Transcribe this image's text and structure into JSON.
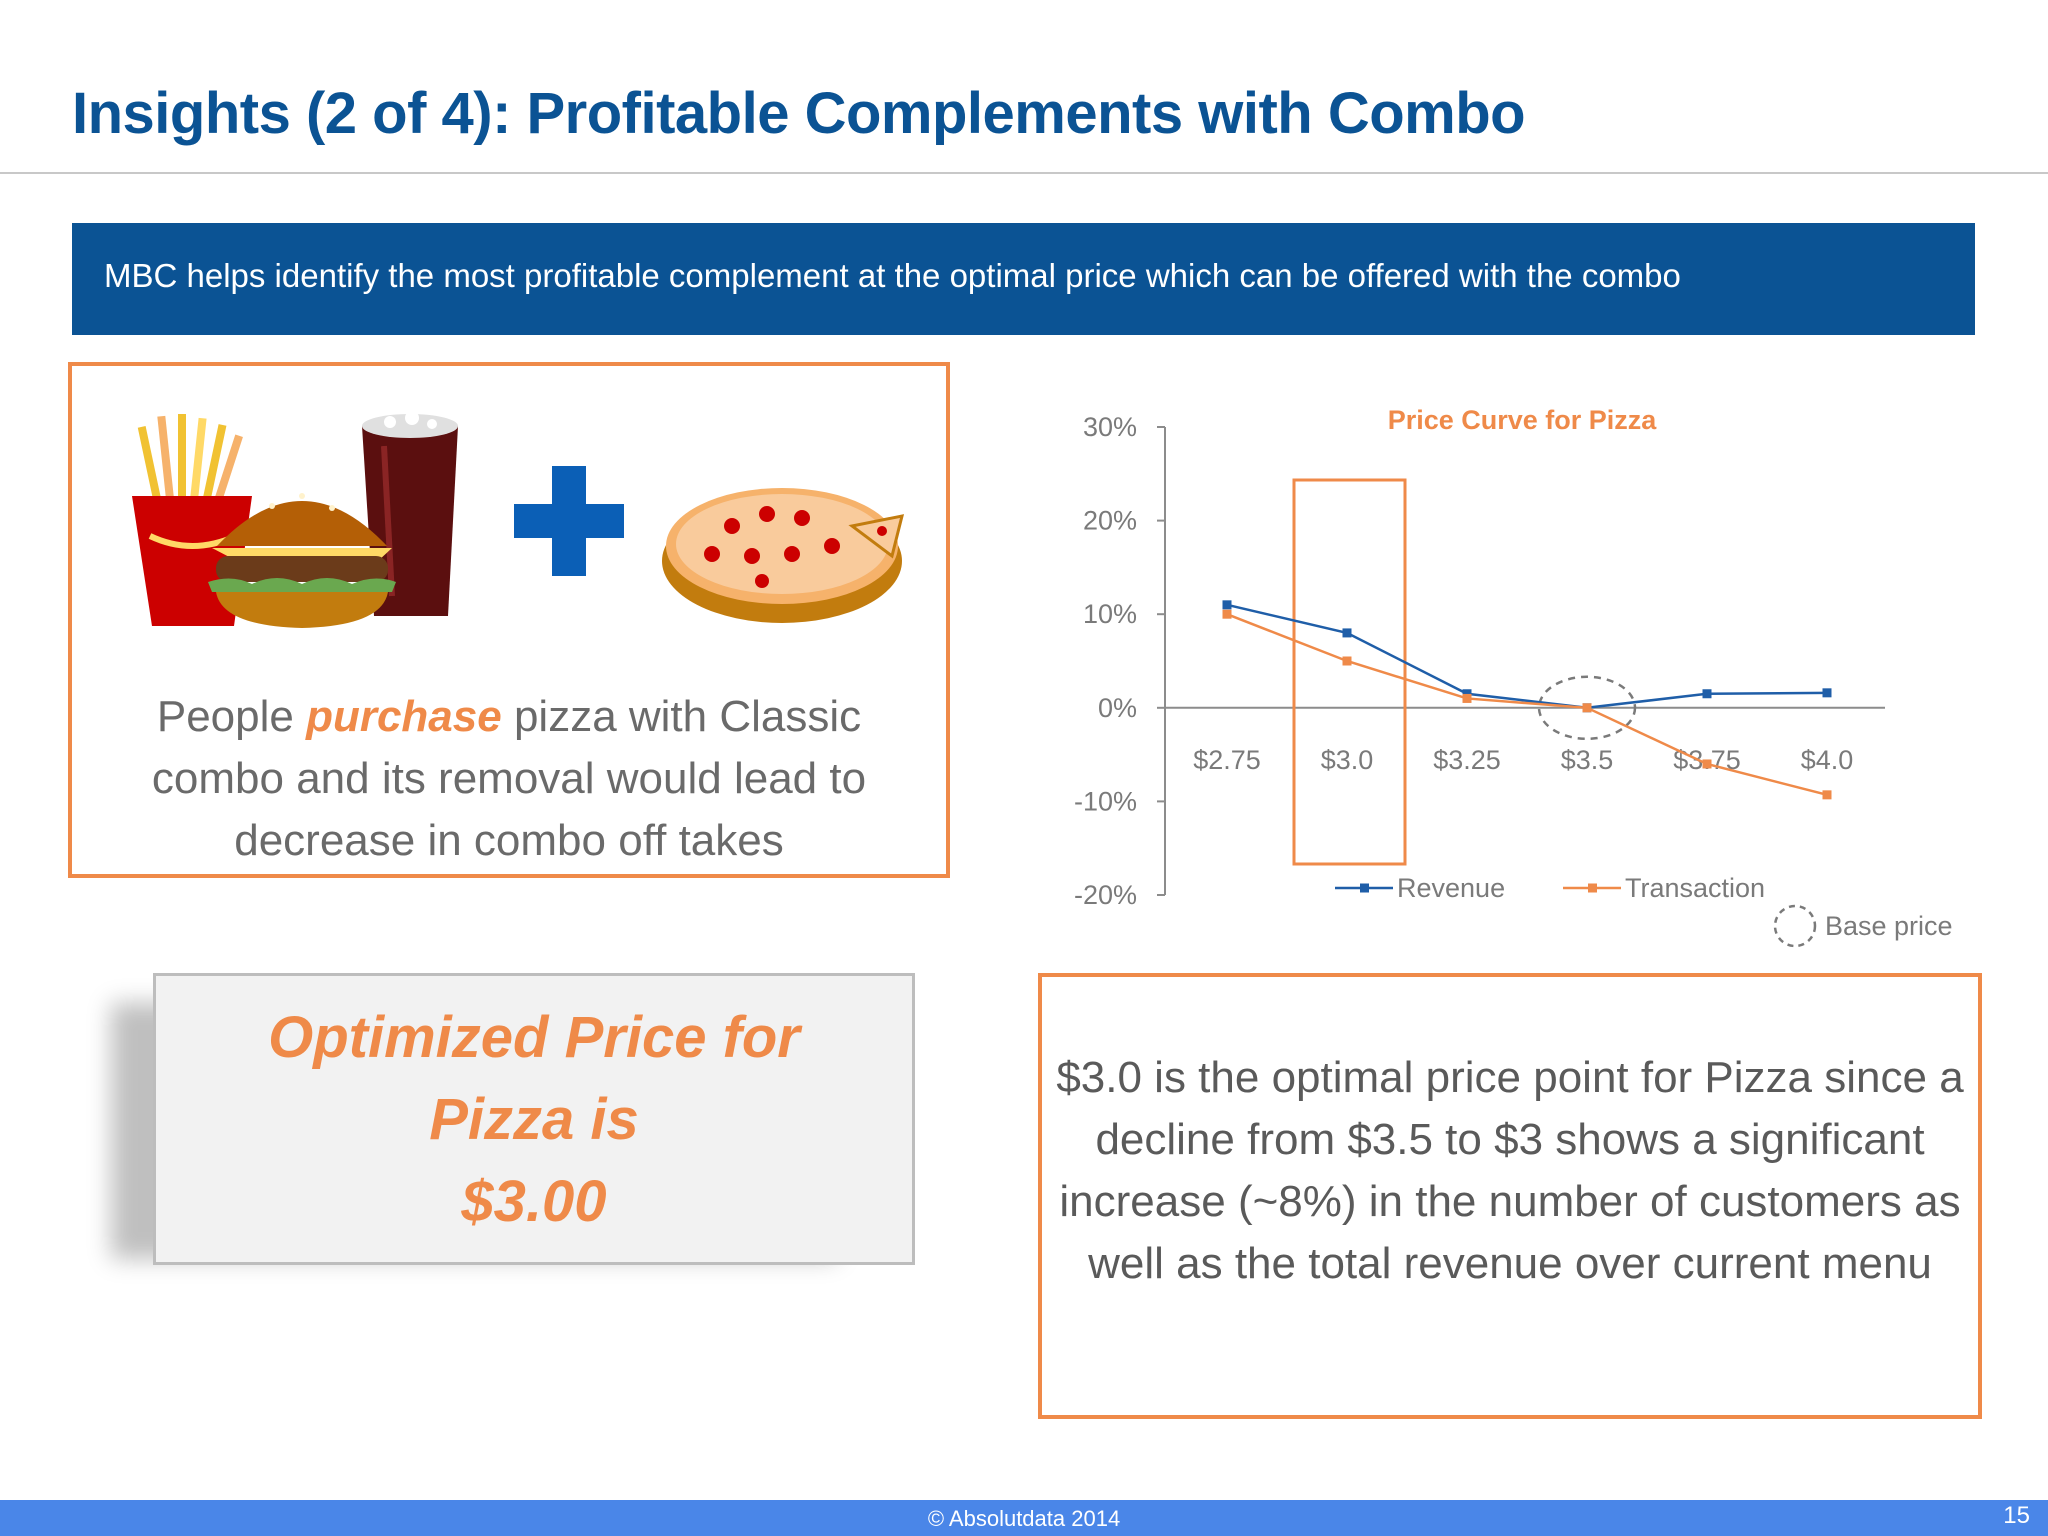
{
  "slide": {
    "title": "Insights (2 of 4): Profitable Complements with Combo",
    "banner": "MBC helps identify the most profitable complement at the optimal price which can be offered with the combo"
  },
  "left_panel": {
    "text_before": "People ",
    "text_emphasis": "purchase",
    "text_after": " pizza with Classic combo and its removal would lead to decrease in combo off takes"
  },
  "optimized_box": {
    "line1": "Optimized Price for",
    "line2": "Pizza is",
    "line3": "$3.00"
  },
  "right_panel": {
    "text": "$3.0 is the optimal price point for Pizza since a decline from $3.5 to $3 shows a significant increase (~8%) in the number of customers as well as the total revenue over current menu"
  },
  "footer": {
    "copyright": "© Absolutdata 2014",
    "page": "15"
  },
  "colors": {
    "brand_blue": "#0b5394",
    "accent_orange": "#ef8a49",
    "revenue": "#1f5ea8",
    "transaction": "#ef8a49"
  },
  "chart_data": {
    "type": "line",
    "title": "Price Curve for Pizza",
    "categories": [
      "$2.75",
      "$3.0",
      "$3.25",
      "$3.5",
      "$3.75",
      "$4.0"
    ],
    "series": [
      {
        "name": "Revenue",
        "values": [
          11,
          8,
          1.5,
          0,
          1.5,
          1.6
        ]
      },
      {
        "name": "Transaction",
        "values": [
          10,
          5,
          1,
          0,
          -6,
          -9.3
        ]
      }
    ],
    "y_ticks": [
      "30%",
      "20%",
      "10%",
      "0%",
      "-10%",
      "-20%"
    ],
    "ylim": [
      -20,
      30
    ],
    "highlight_category": "$3.0",
    "base_price_category": "$3.5",
    "base_price_label": "Base price",
    "legend": "bottom"
  }
}
